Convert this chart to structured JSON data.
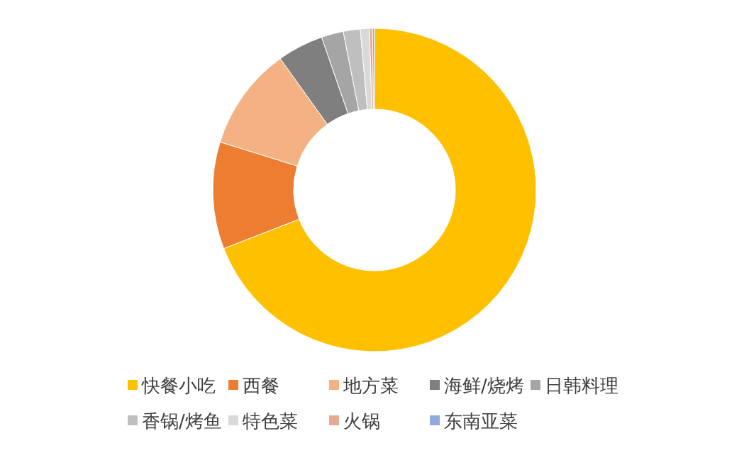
{
  "chart_data": {
    "type": "donut",
    "categories": [
      "快餐小吃",
      "西餐",
      "地方菜",
      "海鲜/烧烤",
      "日韩料理",
      "香锅/烤鱼",
      "特色菜",
      "火锅",
      "东南亚菜"
    ],
    "values": [
      69.1,
      10.7,
      10.3,
      4.6,
      2.2,
      1.7,
      0.9,
      0.3,
      0.2
    ],
    "colors": [
      "#ffc000",
      "#ed7d31",
      "#f4b183",
      "#7f7f7f",
      "#a5a5a5",
      "#bfbfbf",
      "#d9d9d9",
      "#e8a990",
      "#8faadc"
    ],
    "legend": "bottom"
  }
}
